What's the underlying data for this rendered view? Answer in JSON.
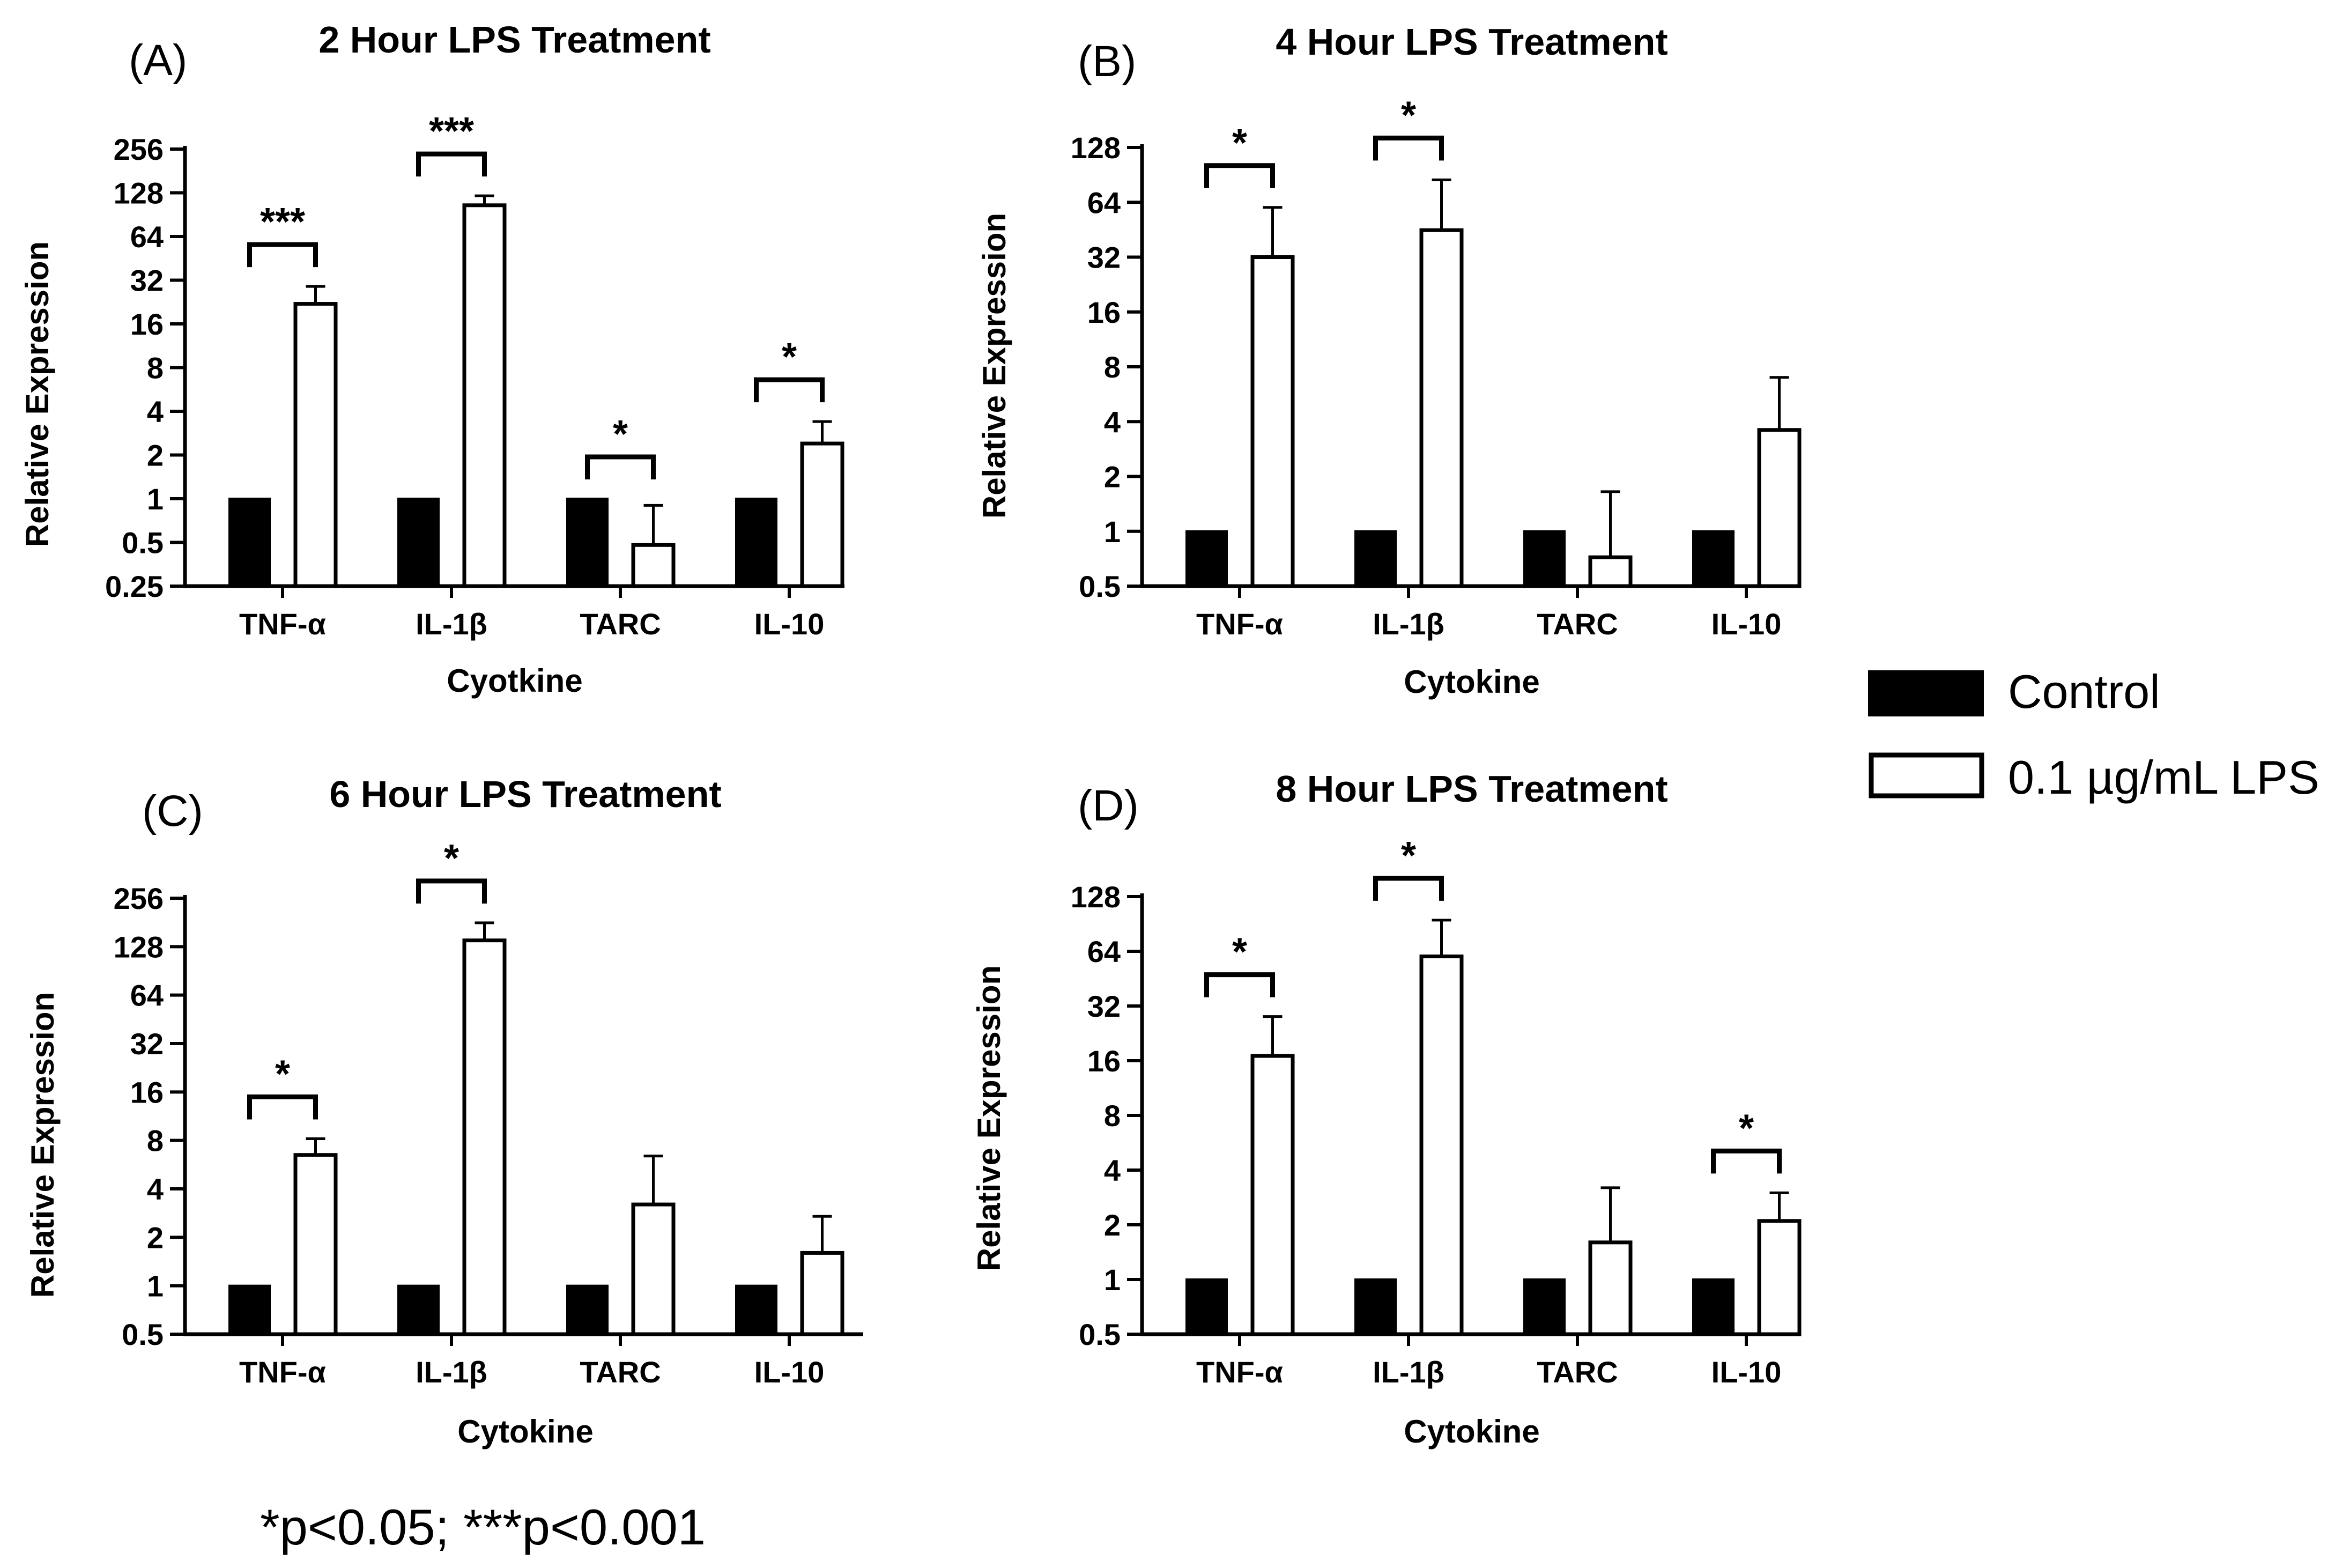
{
  "legend": {
    "control_label": "Control",
    "lps_label": "0.1 µg/mL LPS",
    "control_color": "#000000",
    "lps_color": "#ffffff"
  },
  "footnote": "*p<0.05; ***p<0.001",
  "chart_data": [
    {
      "panel": "(A)",
      "title": "2 Hour LPS Treatment",
      "type": "bar",
      "scale": "log2",
      "xlabel": "Cyotkine",
      "ylabel": "Relative Expression",
      "ylim": [
        0.25,
        256
      ],
      "yticks": [
        0.25,
        0.5,
        1,
        2,
        4,
        8,
        16,
        32,
        64,
        128,
        256
      ],
      "ytick_labels": [
        "0.25",
        "0.5",
        "1",
        "2",
        "4",
        "8",
        "16",
        "32",
        "64",
        "128",
        "256"
      ],
      "categories": [
        "TNF-α",
        "IL-1β",
        "TARC",
        "IL-10"
      ],
      "series": [
        {
          "name": "Control",
          "values": [
            1,
            1,
            1,
            1
          ]
        },
        {
          "name": "0.1 µg/mL LPS",
          "values": [
            22,
            105,
            0.48,
            2.4
          ],
          "error_upper": [
            29,
            122,
            0.9,
            3.4
          ]
        }
      ],
      "significance": [
        "***",
        "***",
        "*",
        "*"
      ]
    },
    {
      "panel": "(B)",
      "title": "4 Hour LPS Treatment",
      "type": "bar",
      "scale": "log2",
      "xlabel": "Cytokine",
      "ylabel": "Relative Expression",
      "ylim": [
        0.5,
        128
      ],
      "yticks": [
        0.5,
        1,
        2,
        4,
        8,
        16,
        32,
        64,
        128
      ],
      "ytick_labels": [
        "0.5",
        "1",
        "2",
        "4",
        "8",
        "16",
        "32",
        "64",
        "128"
      ],
      "categories": [
        "TNF-α",
        "IL-1β",
        "TARC",
        "IL-10"
      ],
      "series": [
        {
          "name": "Control",
          "values": [
            1,
            1,
            1,
            1
          ]
        },
        {
          "name": "0.1 µg/mL LPS",
          "values": [
            32,
            45,
            0.72,
            3.6
          ],
          "error_upper": [
            60,
            85,
            1.65,
            7.0
          ]
        }
      ],
      "significance": [
        "*",
        "*",
        "",
        ""
      ]
    },
    {
      "panel": "(C)",
      "title": "6 Hour LPS Treatment",
      "type": "bar",
      "scale": "log2",
      "xlabel": "Cytokine",
      "ylabel": "Relative Expression",
      "ylim": [
        0.5,
        256
      ],
      "yticks": [
        0.5,
        1,
        2,
        4,
        8,
        16,
        32,
        64,
        128,
        256
      ],
      "ytick_labels": [
        "0.5",
        "1",
        "2",
        "4",
        "8",
        "16",
        "32",
        "64",
        "128",
        "256"
      ],
      "categories": [
        "TNF-α",
        "IL-1β",
        "TARC",
        "IL-10"
      ],
      "series": [
        {
          "name": "Control",
          "values": [
            1,
            1,
            1,
            1
          ]
        },
        {
          "name": "0.1 µg/mL LPS",
          "values": [
            6.5,
            140,
            3.2,
            1.6
          ],
          "error_upper": [
            8.2,
            180,
            6.4,
            2.7
          ]
        }
      ],
      "significance": [
        "*",
        "*",
        "",
        ""
      ]
    },
    {
      "panel": "(D)",
      "title": "8 Hour LPS Treatment",
      "type": "bar",
      "scale": "log2",
      "xlabel": "Cytokine",
      "ylabel": "Relative Expression",
      "ylim": [
        0.5,
        128
      ],
      "yticks": [
        0.5,
        1,
        2,
        4,
        8,
        16,
        32,
        64,
        128
      ],
      "ytick_labels": [
        "0.5",
        "1",
        "2",
        "4",
        "8",
        "16",
        "32",
        "64",
        "128"
      ],
      "categories": [
        "TNF-α",
        "IL-1β",
        "TARC",
        "IL-10"
      ],
      "series": [
        {
          "name": "Control",
          "values": [
            1,
            1,
            1,
            1
          ]
        },
        {
          "name": "0.1 µg/mL LPS",
          "values": [
            17,
            60,
            1.6,
            2.1
          ],
          "error_upper": [
            28,
            95,
            3.2,
            3.0
          ]
        }
      ],
      "significance": [
        "*",
        "*",
        "",
        "*"
      ]
    }
  ]
}
